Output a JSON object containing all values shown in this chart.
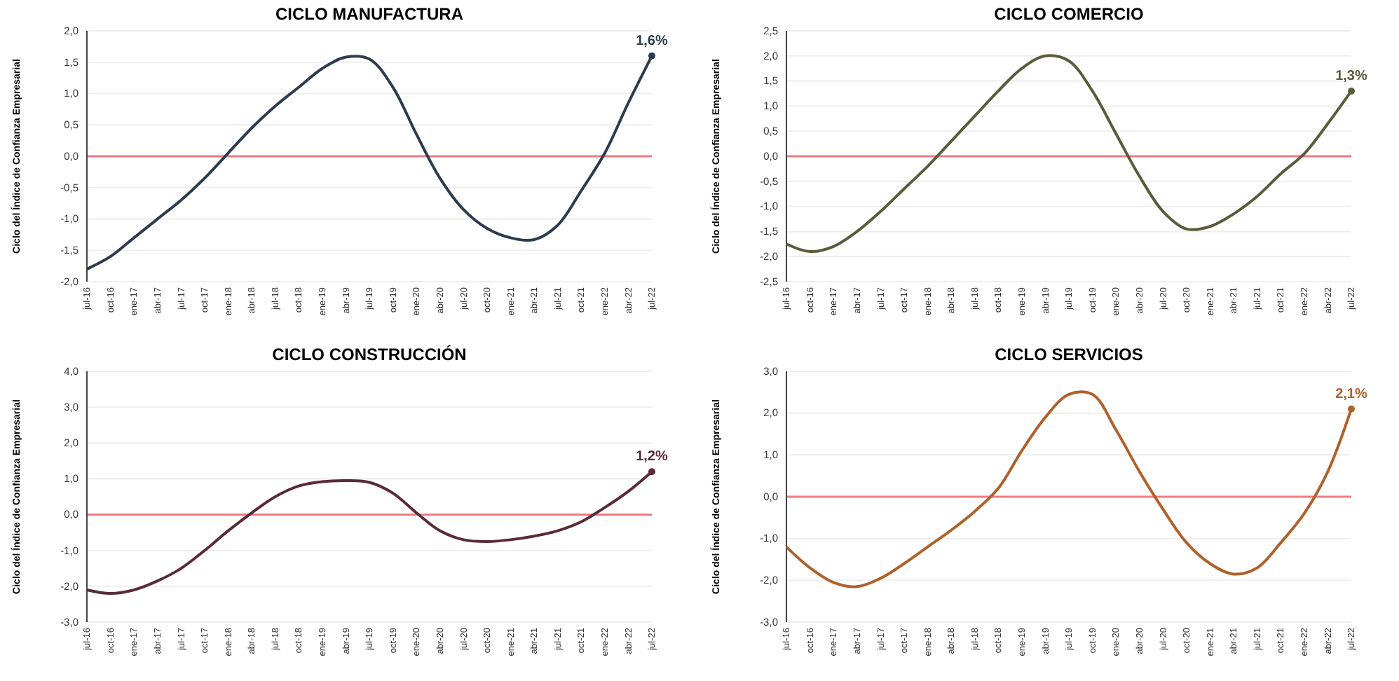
{
  "chart_data": [
    {
      "type": "line",
      "title": "CICLO MANUFACTURA",
      "ylabel": "Ciclo del Índice de Confianza Empresarial",
      "categories": [
        "jul-16",
        "oct-16",
        "ene-17",
        "abr-17",
        "jul-17",
        "oct-17",
        "ene-18",
        "abr-18",
        "jul-18",
        "oct-18",
        "ene-19",
        "abr-19",
        "jul-19",
        "oct-19",
        "ene-20",
        "abr-20",
        "jul-20",
        "oct-20",
        "ene-21",
        "abr-21",
        "jul-21",
        "oct-21",
        "ene-22",
        "abr-22",
        "jul-22"
      ],
      "series": [
        {
          "color": "#2d3b4e",
          "values": [
            -1.8,
            -1.6,
            -1.3,
            -1.0,
            -0.7,
            -0.35,
            0.05,
            0.45,
            0.8,
            1.1,
            1.4,
            1.58,
            1.55,
            1.1,
            0.35,
            -0.35,
            -0.85,
            -1.15,
            -1.3,
            -1.33,
            -1.1,
            -0.55,
            0.05,
            0.85,
            1.6
          ]
        }
      ],
      "ylim": [
        -2,
        2
      ],
      "yticks": [
        {
          "value": -2,
          "label": "-2,0"
        },
        {
          "value": -1.5,
          "label": "-1,5"
        },
        {
          "value": -1,
          "label": "-1,0"
        },
        {
          "value": -0.5,
          "label": "-0,5"
        },
        {
          "value": 0,
          "label": "0,0"
        },
        {
          "value": 0.5,
          "label": "0,5"
        },
        {
          "value": 1,
          "label": "1,0"
        },
        {
          "value": 1.5,
          "label": "1,5"
        },
        {
          "value": 2,
          "label": "2,0"
        }
      ],
      "grid": "y",
      "marker": "none",
      "line_style": "solid",
      "ref_lines": [
        {
          "axis": "y",
          "value": 0,
          "color": "#f07a80"
        }
      ],
      "annotations": [
        {
          "text": "1,6%",
          "x": "jul-22",
          "y": 1.6
        }
      ]
    },
    {
      "type": "line",
      "title": "CICLO COMERCIO",
      "ylabel": "Ciclo del Índice de Confianza Empresarial",
      "categories": [
        "jul-16",
        "oct-16",
        "ene-17",
        "abr-17",
        "jul-17",
        "oct-17",
        "ene-18",
        "abr-18",
        "jul-18",
        "oct-18",
        "ene-19",
        "abr-19",
        "jul-19",
        "oct-19",
        "ene-20",
        "abr-20",
        "jul-20",
        "oct-20",
        "ene-21",
        "abr-21",
        "jul-21",
        "oct-21",
        "ene-22",
        "abr-22",
        "jul-22"
      ],
      "series": [
        {
          "color": "#5b5a3a",
          "values": [
            -1.75,
            -1.9,
            -1.8,
            -1.5,
            -1.1,
            -0.65,
            -0.2,
            0.3,
            0.8,
            1.3,
            1.75,
            2.0,
            1.9,
            1.3,
            0.45,
            -0.4,
            -1.1,
            -1.45,
            -1.4,
            -1.15,
            -0.8,
            -0.35,
            0.05,
            0.65,
            1.3
          ]
        }
      ],
      "ylim": [
        -2.5,
        2.5
      ],
      "yticks": [
        {
          "value": -2.5,
          "label": "-2,5"
        },
        {
          "value": -2,
          "label": "-2,0"
        },
        {
          "value": -1.5,
          "label": "-1,5"
        },
        {
          "value": -1,
          "label": "-1,0"
        },
        {
          "value": -0.5,
          "label": "-0,5"
        },
        {
          "value": 0,
          "label": "0,0"
        },
        {
          "value": 0.5,
          "label": "0,5"
        },
        {
          "value": 1,
          "label": "1,0"
        },
        {
          "value": 1.5,
          "label": "1,5"
        },
        {
          "value": 2,
          "label": "2,0"
        },
        {
          "value": 2.5,
          "label": "2,5"
        }
      ],
      "grid": "y",
      "marker": "none",
      "line_style": "solid",
      "ref_lines": [
        {
          "axis": "y",
          "value": 0,
          "color": "#f07a80"
        }
      ],
      "annotations": [
        {
          "text": "1,3%",
          "x": "jul-22",
          "y": 1.3
        }
      ]
    },
    {
      "type": "line",
      "title": "CICLO CONSTRUCCIÓN",
      "ylabel": "Ciclo del Índice de Confianza Empresarial",
      "categories": [
        "jul-16",
        "oct-16",
        "ene-17",
        "abr-17",
        "jul-17",
        "oct-17",
        "ene-18",
        "abr-18",
        "jul-18",
        "oct-18",
        "ene-19",
        "abr-19",
        "jul-19",
        "oct-19",
        "ene-20",
        "abr-20",
        "jul-20",
        "oct-20",
        "ene-21",
        "abr-21",
        "jul-21",
        "oct-21",
        "ene-22",
        "abr-22",
        "jul-22"
      ],
      "series": [
        {
          "color": "#5a2b35",
          "values": [
            -2.1,
            -2.2,
            -2.1,
            -1.85,
            -1.5,
            -1.0,
            -0.45,
            0.05,
            0.5,
            0.8,
            0.92,
            0.95,
            0.9,
            0.6,
            0.05,
            -0.45,
            -0.7,
            -0.75,
            -0.7,
            -0.6,
            -0.45,
            -0.2,
            0.2,
            0.65,
            1.2
          ]
        }
      ],
      "ylim": [
        -3,
        4
      ],
      "yticks": [
        {
          "value": -3,
          "label": "-3,0"
        },
        {
          "value": -2,
          "label": "-2,0"
        },
        {
          "value": -1,
          "label": "-1,0"
        },
        {
          "value": 0,
          "label": "0,0"
        },
        {
          "value": 1,
          "label": "1,0"
        },
        {
          "value": 2,
          "label": "2,0"
        },
        {
          "value": 3,
          "label": "3,0"
        },
        {
          "value": 4,
          "label": "4,0"
        }
      ],
      "grid": "y",
      "marker": "none",
      "line_style": "solid",
      "ref_lines": [
        {
          "axis": "y",
          "value": 0,
          "color": "#f07a80"
        }
      ],
      "annotations": [
        {
          "text": "1,2%",
          "x": "jul-22",
          "y": 1.2
        }
      ]
    },
    {
      "type": "line",
      "title": "CICLO SERVICIOS",
      "ylabel": "Ciclo del Índice de Confianza Empresarial",
      "categories": [
        "jul-16",
        "oct-16",
        "ene-17",
        "abr-17",
        "jul-17",
        "oct-17",
        "ene-18",
        "abr-18",
        "jul-18",
        "oct-18",
        "ene-19",
        "abr-19",
        "jul-19",
        "oct-19",
        "ene-20",
        "abr-20",
        "jul-20",
        "oct-20",
        "ene-21",
        "abr-21",
        "jul-21",
        "oct-21",
        "ene-22",
        "abr-22",
        "jul-22"
      ],
      "series": [
        {
          "color": "#b0602a",
          "values": [
            -1.2,
            -1.7,
            -2.05,
            -2.15,
            -1.95,
            -1.6,
            -1.2,
            -0.8,
            -0.35,
            0.2,
            1.1,
            1.9,
            2.45,
            2.45,
            1.6,
            0.6,
            -0.3,
            -1.1,
            -1.6,
            -1.85,
            -1.7,
            -1.1,
            -0.4,
            0.6,
            2.1
          ]
        }
      ],
      "ylim": [
        -3,
        3
      ],
      "yticks": [
        {
          "value": -3,
          "label": "-3,0"
        },
        {
          "value": -2,
          "label": "-2,0"
        },
        {
          "value": -1,
          "label": "-1,0"
        },
        {
          "value": 0,
          "label": "0,0"
        },
        {
          "value": 1,
          "label": "1,0"
        },
        {
          "value": 2,
          "label": "2,0"
        },
        {
          "value": 3,
          "label": "3,0"
        }
      ],
      "grid": "y",
      "marker": "none",
      "line_style": "solid",
      "ref_lines": [
        {
          "axis": "y",
          "value": 0,
          "color": "#f07a80"
        }
      ],
      "annotations": [
        {
          "text": "2,1%",
          "x": "jul-22",
          "y": 2.1
        }
      ]
    }
  ]
}
